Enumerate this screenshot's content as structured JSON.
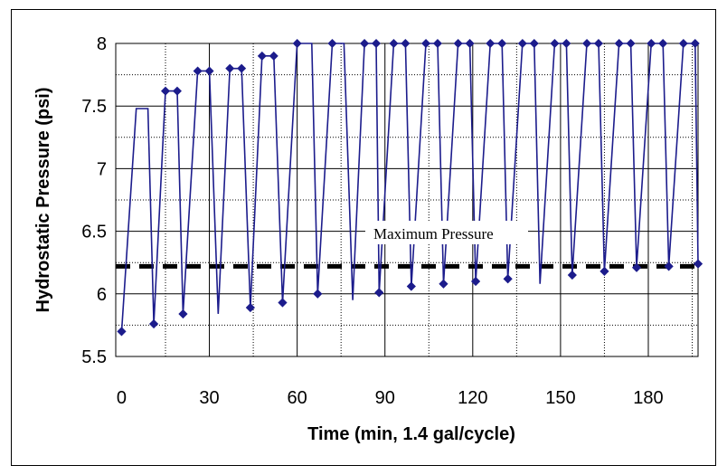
{
  "chart_data": {
    "type": "line",
    "title": "",
    "xlabel": "Time (min, 1.4 gal/cycle)",
    "ylabel": "Hydrostatic Pressure (psi)",
    "xlim": [
      -2,
      197
    ],
    "ylim": [
      5.5,
      8
    ],
    "x_ticks": [
      0,
      30,
      60,
      90,
      120,
      150,
      180
    ],
    "x_tick_labels": [
      "0",
      "30",
      "60",
      "90",
      "120",
      "150",
      "180"
    ],
    "y_ticks": [
      5.5,
      6,
      6.5,
      7,
      7.5,
      8
    ],
    "y_tick_labels": [
      "5.5",
      "6",
      "6.5",
      "7",
      "7.5",
      "8"
    ],
    "grid": {
      "major": true,
      "minor_dotted": true
    },
    "line_color": "#1c1c8c",
    "marker": "diamond",
    "threshold": {
      "label": "Maximum Pressure",
      "value": 6.22,
      "color": "#000000",
      "style": "dashed"
    },
    "series": [
      {
        "x": [
          0,
          11,
          21,
          28,
          33,
          44,
          55,
          67,
          79,
          88,
          99,
          110,
          121,
          132,
          143,
          154,
          165,
          176,
          187,
          197
        ],
        "y": [
          5.7,
          5.76,
          5.84,
          5.83,
          5.84,
          5.89,
          5.93,
          6.0,
          5.95,
          6.01,
          6.06,
          6.08,
          6.1,
          6.12,
          6.08,
          6.15,
          6.18,
          6.21,
          6.22,
          6.24
        ],
        "style": "minima",
        "markers": [
          true,
          true,
          true,
          false,
          false,
          true,
          true,
          true,
          false,
          true,
          true,
          true,
          true,
          true,
          false,
          true,
          true,
          true,
          true,
          true
        ]
      },
      {
        "x": [
          0,
          5,
          6,
          9,
          11,
          15,
          19,
          21,
          26,
          30,
          33,
          37,
          41,
          44,
          48,
          52,
          55,
          60,
          65,
          67,
          72,
          76,
          79,
          83,
          87,
          88,
          93,
          97,
          99,
          104,
          108,
          110,
          115,
          119,
          121,
          126,
          130,
          132,
          137,
          141,
          143,
          148,
          152,
          154,
          159,
          163,
          165,
          170,
          174,
          176,
          181,
          185,
          187,
          192,
          196,
          197
        ],
        "y": [
          5.7,
          7.48,
          7.48,
          7.48,
          5.76,
          7.62,
          7.62,
          5.84,
          7.78,
          7.78,
          5.84,
          7.8,
          7.8,
          5.89,
          7.9,
          7.9,
          5.93,
          8.0,
          8.0,
          6.0,
          8.0,
          8.0,
          5.95,
          8.0,
          8.0,
          6.01,
          8.0,
          8.0,
          6.06,
          8.0,
          8.0,
          6.08,
          8.0,
          8.0,
          6.1,
          8.0,
          8.0,
          6.12,
          8.0,
          8.0,
          6.08,
          8.0,
          8.0,
          6.15,
          8.0,
          8.0,
          6.18,
          8.0,
          8.0,
          6.21,
          8.0,
          8.0,
          6.22,
          8.0,
          8.0,
          6.24
        ],
        "markers": [
          true,
          false,
          false,
          false,
          true,
          true,
          true,
          true,
          true,
          true,
          false,
          true,
          true,
          true,
          true,
          true,
          true,
          true,
          false,
          true,
          true,
          false,
          false,
          true,
          true,
          true,
          true,
          true,
          true,
          true,
          true,
          true,
          true,
          true,
          true,
          true,
          true,
          true,
          true,
          true,
          false,
          true,
          true,
          true,
          true,
          true,
          true,
          true,
          true,
          true,
          true,
          true,
          true,
          true,
          true,
          true
        ]
      }
    ]
  }
}
